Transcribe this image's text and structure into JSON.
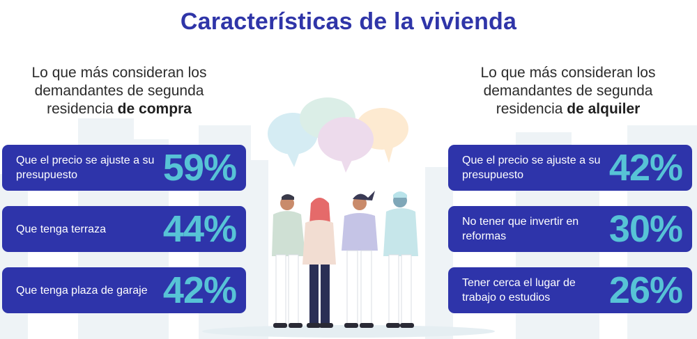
{
  "title": "Características de la vivienda",
  "left": {
    "heading_plain": "Lo que más consideran los demandantes de segunda residencia ",
    "heading_bold": "de compra",
    "items": [
      {
        "label": "Que el precio se ajuste a su presupuesto",
        "value": "59%"
      },
      {
        "label": "Que tenga terraza",
        "value": "44%"
      },
      {
        "label": "Que tenga plaza de garaje",
        "value": "42%"
      }
    ]
  },
  "right": {
    "heading_plain": "Lo que más consideran los demandantes de segunda residencia ",
    "heading_bold": "de alquiler",
    "items": [
      {
        "label": "Que el precio se ajuste a su presupuesto",
        "value": "42%"
      },
      {
        "label": "No tener que invertir en reformas",
        "value": "30%"
      },
      {
        "label": "Tener cerca el lugar de trabajo o estudios",
        "value": "26%"
      }
    ]
  },
  "colors": {
    "title": "#2f35a8",
    "card_bg": "#2e34aa",
    "value": "#57c3d6",
    "skyline": "#eef3f6"
  }
}
